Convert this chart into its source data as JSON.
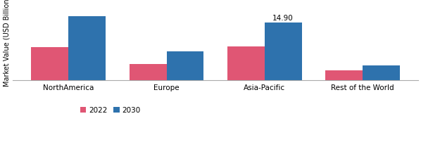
{
  "categories": [
    "NorthAmerica",
    "Europe",
    "Asia-Pacific",
    "Rest of the World"
  ],
  "values_2022": [
    8.5,
    4.2,
    8.8,
    2.5
  ],
  "values_2030": [
    16.5,
    7.5,
    14.9,
    3.8
  ],
  "annotate_idx": 2,
  "annotate_text": "14.90",
  "color_2022": "#e05674",
  "color_2030": "#2e72ad",
  "ylabel": "Market Value (USD Billion)",
  "legend_2022": "2022",
  "legend_2030": "2030",
  "bar_width": 0.38,
  "ylim_max": 20,
  "bg_color": "#ffffff",
  "annotation_fontsize": 7.5,
  "ylabel_fontsize": 7,
  "tick_fontsize": 7.5,
  "legend_fontsize": 7.5
}
